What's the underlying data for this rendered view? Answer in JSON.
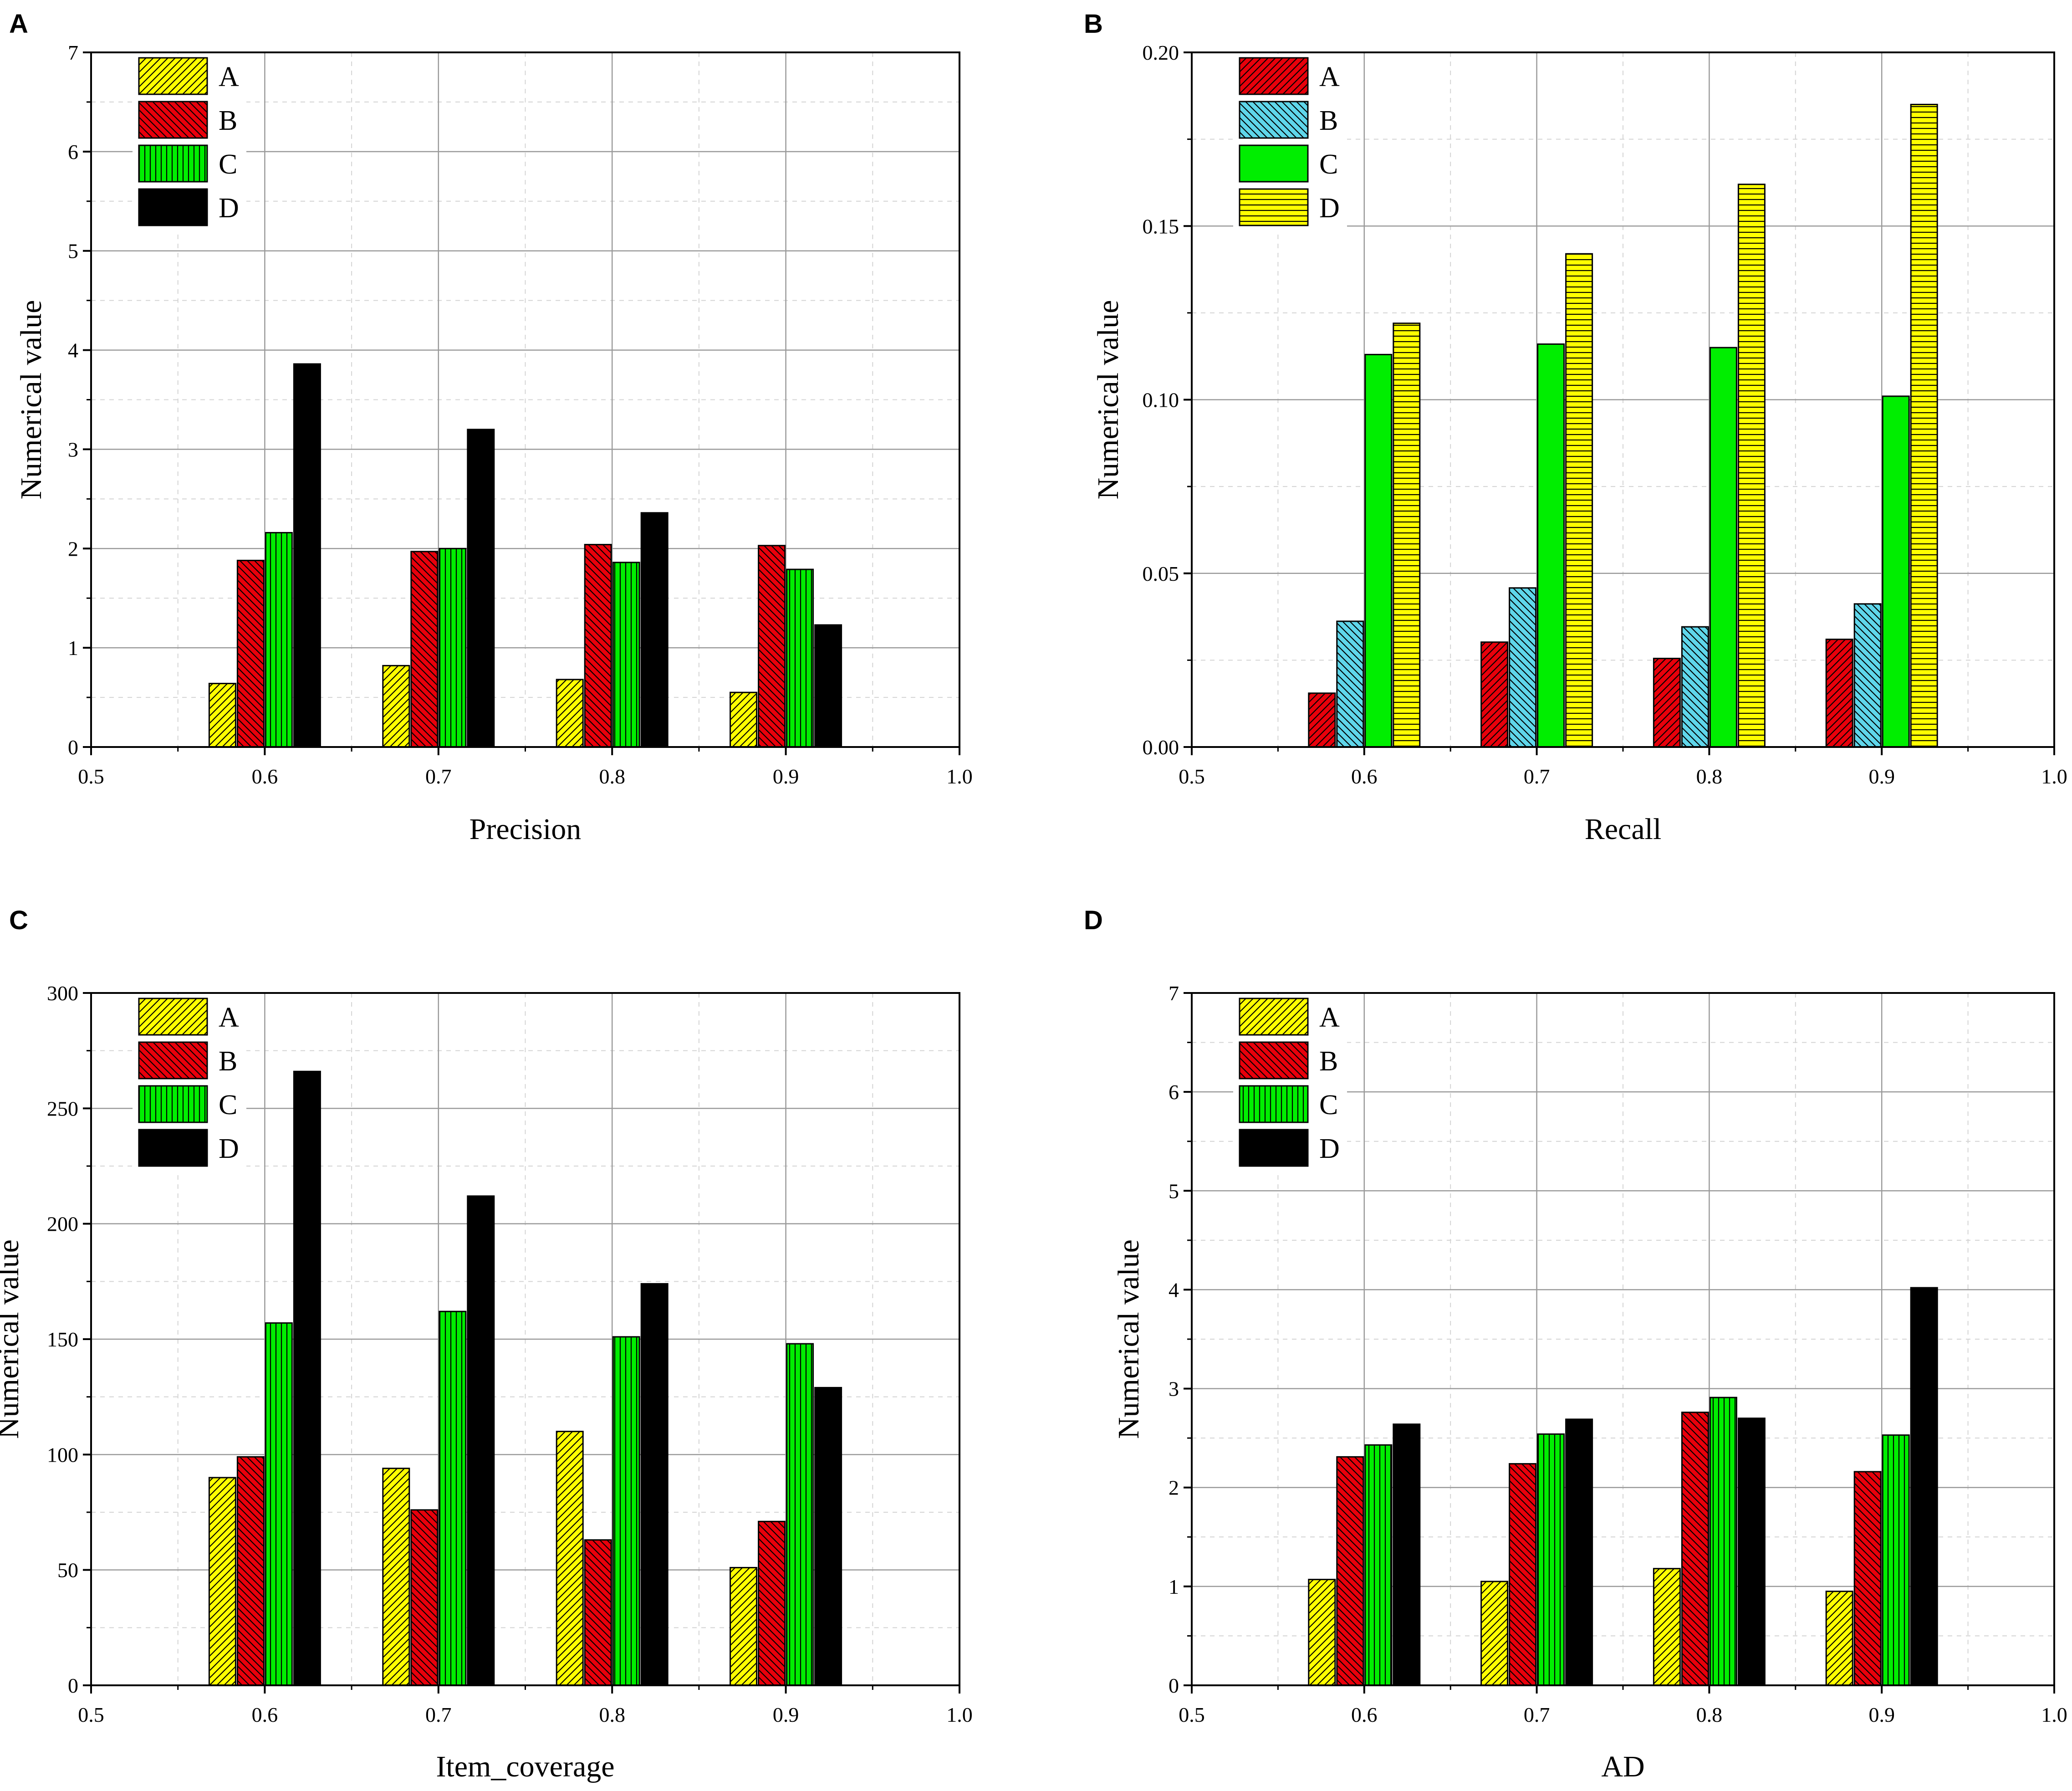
{
  "colors": {
    "yellow": "#ffff00",
    "red": "#e8000b",
    "cyan": "#5fd6ea",
    "green": "#00ee00",
    "black": "#000000"
  },
  "chart_data": [
    {
      "type": "bar",
      "panel": "A",
      "xlabel": "Precision",
      "ylabel": "Numerical value",
      "xlim": [
        0.5,
        1.0
      ],
      "ylim": [
        0,
        7
      ],
      "xticks": [
        "0.5",
        "0.6",
        "0.7",
        "0.8",
        "0.9",
        "1.0"
      ],
      "yticks": [
        "0",
        "1",
        "2",
        "3",
        "4",
        "5",
        "6",
        "7"
      ],
      "grid": true,
      "legend_position": "top-left",
      "categories": [
        0.6,
        0.7,
        0.8,
        0.9
      ],
      "series": [
        {
          "name": "A",
          "color": "#ffff00",
          "pattern": "diag-right",
          "values": [
            0.64,
            0.82,
            0.68,
            0.55
          ]
        },
        {
          "name": "B",
          "color": "#e8000b",
          "pattern": "diag-left",
          "values": [
            1.88,
            1.97,
            2.04,
            2.03
          ]
        },
        {
          "name": "C",
          "color": "#00ee00",
          "pattern": "vertical",
          "values": [
            2.16,
            2.0,
            1.86,
            1.79
          ]
        },
        {
          "name": "D",
          "color": "#000000",
          "pattern": "solid",
          "values": [
            3.86,
            3.2,
            2.36,
            1.23
          ]
        }
      ]
    },
    {
      "type": "bar",
      "panel": "B",
      "xlabel": "Recall",
      "ylabel": "Numerical value",
      "xlim": [
        0.5,
        1.0
      ],
      "ylim": [
        0,
        0.2
      ],
      "xticks": [
        "0.5",
        "0.6",
        "0.7",
        "0.8",
        "0.9",
        "1.0"
      ],
      "yticks": [
        "0.00",
        "0.05",
        "0.10",
        "0.15",
        "0.20"
      ],
      "grid": true,
      "legend_position": "top-left",
      "categories": [
        0.6,
        0.7,
        0.8,
        0.9
      ],
      "series": [
        {
          "name": "A",
          "color": "#e8000b",
          "pattern": "diag-right",
          "values": [
            0.0155,
            0.0302,
            0.0255,
            0.031
          ]
        },
        {
          "name": "B",
          "color": "#5fd6ea",
          "pattern": "diag-left",
          "values": [
            0.0362,
            0.0458,
            0.0346,
            0.0412
          ]
        },
        {
          "name": "C",
          "color": "#00ee00",
          "pattern": "solid",
          "values": [
            0.113,
            0.116,
            0.115,
            0.101
          ]
        },
        {
          "name": "D",
          "color": "#ffff00",
          "pattern": "horizontal",
          "values": [
            0.122,
            0.142,
            0.162,
            0.185
          ]
        }
      ]
    },
    {
      "type": "bar",
      "panel": "C",
      "xlabel": "Item_coverage",
      "ylabel": "Numerical value",
      "xlim": [
        0.5,
        1.0
      ],
      "ylim": [
        0,
        300
      ],
      "xticks": [
        "0.5",
        "0.6",
        "0.7",
        "0.8",
        "0.9",
        "1.0"
      ],
      "yticks": [
        "0",
        "50",
        "100",
        "150",
        "200",
        "250",
        "300"
      ],
      "grid": true,
      "legend_position": "top-left",
      "categories": [
        0.6,
        0.7,
        0.8,
        0.9
      ],
      "series": [
        {
          "name": "A",
          "color": "#ffff00",
          "pattern": "diag-right",
          "values": [
            90,
            94,
            110,
            51
          ]
        },
        {
          "name": "B",
          "color": "#e8000b",
          "pattern": "diag-left",
          "values": [
            99,
            76,
            63,
            71
          ]
        },
        {
          "name": "C",
          "color": "#00ee00",
          "pattern": "vertical",
          "values": [
            157,
            162,
            151,
            148
          ]
        },
        {
          "name": "D",
          "color": "#000000",
          "pattern": "solid",
          "values": [
            266,
            212,
            174,
            129
          ]
        }
      ]
    },
    {
      "type": "bar",
      "panel": "D",
      "xlabel": "AD",
      "ylabel": "Numerical value",
      "xlim": [
        0.5,
        1.0
      ],
      "ylim": [
        0,
        7
      ],
      "xticks": [
        "0.5",
        "0.6",
        "0.7",
        "0.8",
        "0.9",
        "1.0"
      ],
      "yticks": [
        "0",
        "1",
        "2",
        "3",
        "4",
        "5",
        "6",
        "7"
      ],
      "grid": true,
      "legend_position": "top-left",
      "categories": [
        0.6,
        0.7,
        0.8,
        0.9
      ],
      "series": [
        {
          "name": "A",
          "color": "#ffff00",
          "pattern": "diag-right",
          "values": [
            1.07,
            1.05,
            1.18,
            0.95
          ]
        },
        {
          "name": "B",
          "color": "#e8000b",
          "pattern": "diag-left",
          "values": [
            2.31,
            2.24,
            2.76,
            2.16
          ]
        },
        {
          "name": "C",
          "color": "#00ee00",
          "pattern": "vertical",
          "values": [
            2.43,
            2.54,
            2.91,
            2.53
          ]
        },
        {
          "name": "D",
          "color": "#000000",
          "pattern": "solid",
          "values": [
            2.64,
            2.69,
            2.7,
            4.02
          ]
        }
      ]
    }
  ]
}
